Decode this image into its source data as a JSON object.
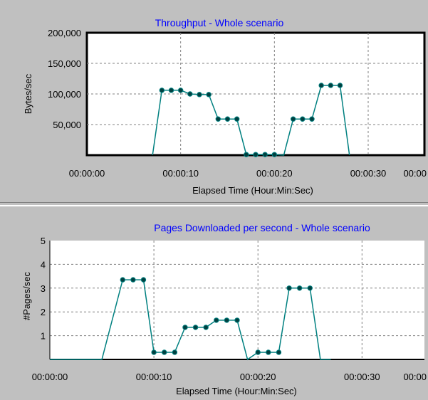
{
  "chart_data": [
    {
      "type": "line",
      "title": "Throughput - Whole scenario",
      "xlabel": "Elapsed Time (Hour:Min:Sec)",
      "ylabel": "Bytes/sec",
      "xlim": [
        0,
        36
      ],
      "ylim": [
        0,
        200000
      ],
      "x_tick_labels": [
        "00:00:00",
        "00:00:10",
        "00:00:20",
        "00:00:30",
        "00:00"
      ],
      "y_tick_labels": [
        "200,000",
        "150,000",
        "100,000",
        "50,000"
      ],
      "grid": true,
      "line_color": "#008080",
      "x": [
        7,
        8,
        9,
        10,
        11,
        12,
        13,
        14,
        15,
        16,
        17,
        18,
        19,
        20,
        21,
        22,
        23,
        24,
        25,
        26,
        27,
        28
      ],
      "y": [
        0,
        106000,
        106000,
        106000,
        100000,
        99000,
        99000,
        59000,
        59000,
        59000,
        1000,
        1000,
        1000,
        1000,
        0,
        59000,
        59000,
        59000,
        114000,
        114000,
        114000,
        0
      ]
    },
    {
      "type": "line",
      "title": "Pages Downloaded  per second - Whole scenario",
      "xlabel": "Elapsed Time (Hour:Min:Sec)",
      "ylabel": "#Pages/sec",
      "xlim": [
        0,
        36
      ],
      "ylim": [
        0,
        5
      ],
      "x_tick_labels": [
        "00:00:00",
        "00:00:10",
        "00:00:20",
        "00:00:30",
        "00:00"
      ],
      "y_tick_labels": [
        "5",
        "4",
        "3",
        "2",
        "1"
      ],
      "grid": true,
      "line_color": "#008080",
      "x": [
        0,
        2,
        3,
        5,
        7,
        8,
        9,
        10,
        11,
        12,
        13,
        14,
        15,
        16,
        17,
        18,
        19,
        20,
        21,
        22,
        23,
        24,
        25,
        26,
        27
      ],
      "y": [
        0,
        0,
        0,
        0,
        3.35,
        3.35,
        3.35,
        0.3,
        0.3,
        0.3,
        1.35,
        1.35,
        1.35,
        1.65,
        1.65,
        1.65,
        0,
        0.3,
        0.3,
        0.3,
        3.0,
        3.0,
        3.0,
        0,
        0
      ]
    }
  ]
}
